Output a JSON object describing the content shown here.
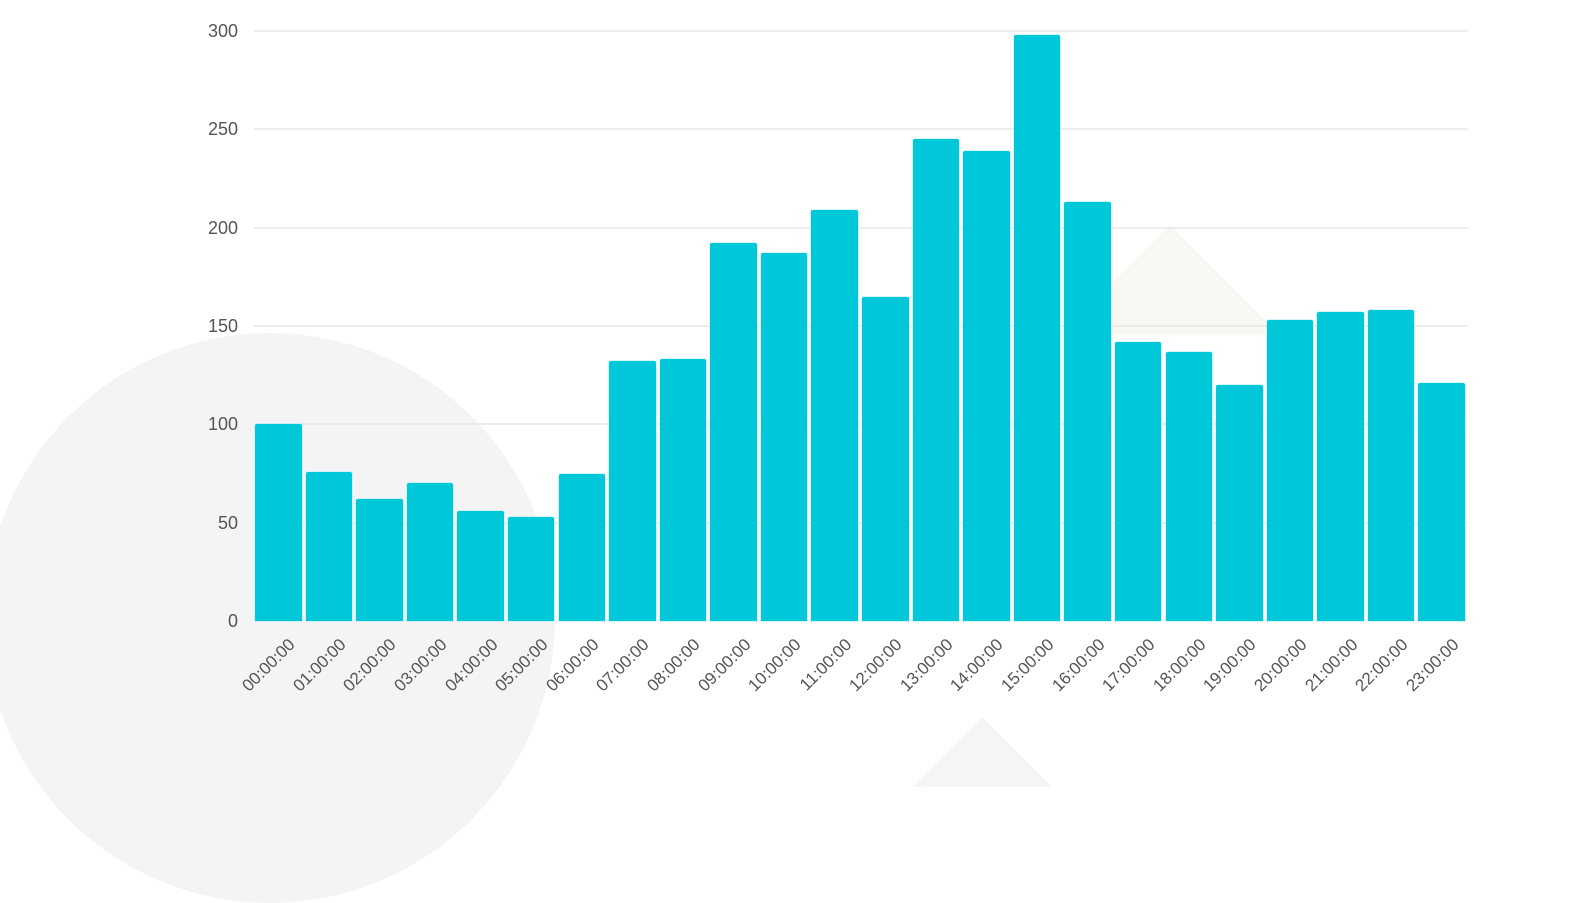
{
  "chart_data": {
    "type": "bar",
    "title": "",
    "xlabel": "",
    "ylabel": "",
    "ylim": [
      0,
      300
    ],
    "yticks": [
      0,
      50,
      100,
      150,
      200,
      250,
      300
    ],
    "grid": true,
    "legend": null,
    "bar_color": "#00c8d9",
    "categories": [
      "00:00:00",
      "01:00:00",
      "02:00:00",
      "03:00:00",
      "04:00:00",
      "05:00:00",
      "06:00:00",
      "07:00:00",
      "08:00:00",
      "09:00:00",
      "10:00:00",
      "11:00:00",
      "12:00:00",
      "13:00:00",
      "14:00:00",
      "15:00:00",
      "16:00:00",
      "17:00:00",
      "18:00:00",
      "19:00:00",
      "20:00:00",
      "21:00:00",
      "22:00:00",
      "23:00:00"
    ],
    "values": [
      100,
      76,
      62,
      70,
      56,
      53,
      75,
      132,
      133,
      192,
      187,
      209,
      165,
      245,
      239,
      298,
      213,
      142,
      137,
      120,
      153,
      157,
      158,
      121
    ]
  }
}
